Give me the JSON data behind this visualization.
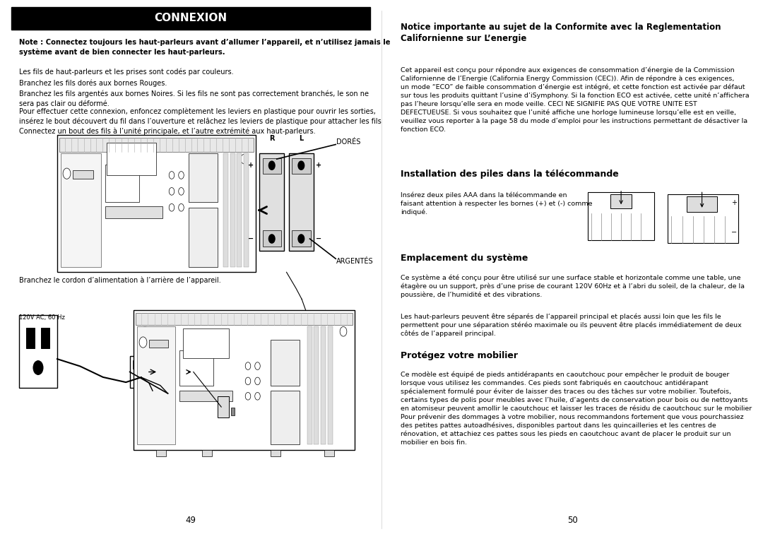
{
  "bg_color": "#ffffff",
  "left_page": {
    "title": "CONNEXION",
    "title_bg": "#000000",
    "title_color": "#ffffff",
    "bold_note": "Note : Connectez toujours les haut-parleurs avant d’allumer l’appareil, et n’utilisez jamais le\nsystème avant de bien connecter les haut-parleurs.",
    "para1": "Les fils de haut-parleurs et les prises sont codés par couleurs.",
    "para2": "Branchez les fils dorés aux bornes Rouges.",
    "para3": "Branchez les fils argentés aux bornes Noires. Si les fils ne sont pas correctement branchés, le son ne\nsera pas clair ou déformé.",
    "para4": "Pour effectuer cette connexion, enfoncez complètement les leviers en plastique pour ouvrir les sorties,\ninsérez le bout découvert du fil dans l’ouverture et relâchez les leviers de plastique pour attacher les fils\nConnectez un bout des fils à l’unité principale, et l’autre extrémité aux haut-parleurs.",
    "label_dores": "DORÉS",
    "label_argentes": "ARGENTÉS",
    "label_r": "R",
    "label_l": "L",
    "para5": "Branchez le cordon d’alimentation à l’arrière de l’appareil.",
    "label_120v": "120V AC, 60 Hz",
    "page_num": "49"
  },
  "right_page": {
    "section1_title": "Notice importante au sujet de la Conformite avec la Reglementation\nCalifornienne sur L’energie",
    "section1_body": "Cet appareil est conçu pour répondre aux exigences de consommation d’énergie de la Commission\nCalifornienne de l’Energie (California Energy Commission (CEC)). Afin de répondre à ces exigences,\nun mode “ECO” de faible consommation d’énergie est intégré, et cette fonction est activée par défaut\nsur tous les produits quittant l’usine d’iSymphony. Si la fonction ECO est activée, cette unité n’affichera\npas l’heure lorsqu’elle sera en mode veille. CECI NE SIGNIFIE PAS QUE VOTRE UNITE EST\nDEFECTUEUSE. Si vous souhaitez que l’unité affiche une horloge lumineuse lorsqu’elle est en veille,\nveuillez vous reporter à la page 58 du mode d’emploi pour les instructions permettant de désactiver la\nfonction ECO.",
    "section2_title": "Installation des piles dans la télécommande",
    "section2_body": "Insérez deux piles AAA dans la télécommande en\nfaisant attention à respecter les bornes (+) et (-) comme\nindiqué.",
    "section3_title": "Emplacement du système",
    "section3_body1": "Ce système a été conçu pour être utilisé sur une surface stable et horizontale comme une table, une\nétagère ou un support, près d’une prise de courant 120V 60Hz et à l’abri du soleil, de la chaleur, de la\npoussière, de l’humidité et des vibrations.",
    "section3_body2": "Les haut-parleurs peuvent être séparés de l’appareil principal et placés aussi loin que les fils le\npermettent pour une séparation stéréo maximale ou ils peuvent être placés immédiatement de deux\ncôtés de l’appareil principal.",
    "section4_title": "Protégez votre mobilier",
    "section4_body": "Ce modèle est équipé de pieds antidérapants en caoutchouc pour empêcher le produit de bouger\nlorsque vous utilisez les commandes. Ces pieds sont fabriqués en caoutchouc antidérapant\nspécialement formulé pour éviter de laisser des traces ou des tâches sur votre mobilier. Toutefois,\ncertains types de polis pour meubles avec l’huile, d’agents de conservation pour bois ou de nettoyants\nen atomiseur peuvent amollir le caoutchouc et laisser les traces de résidu de caoutchouc sur le mobilier\nPour prévenir des dommages à votre mobilier, nous recommandons fortement que vous pourchassiez\ndes petites pattes autoadhésives, disponibles partout dans les quincailleries et les centres de\nrénovation, et attachiez ces pattes sous les pieds en caoutchouc avant de placer le produit sur un\nmobilier en bois fin.",
    "page_num": "50"
  }
}
